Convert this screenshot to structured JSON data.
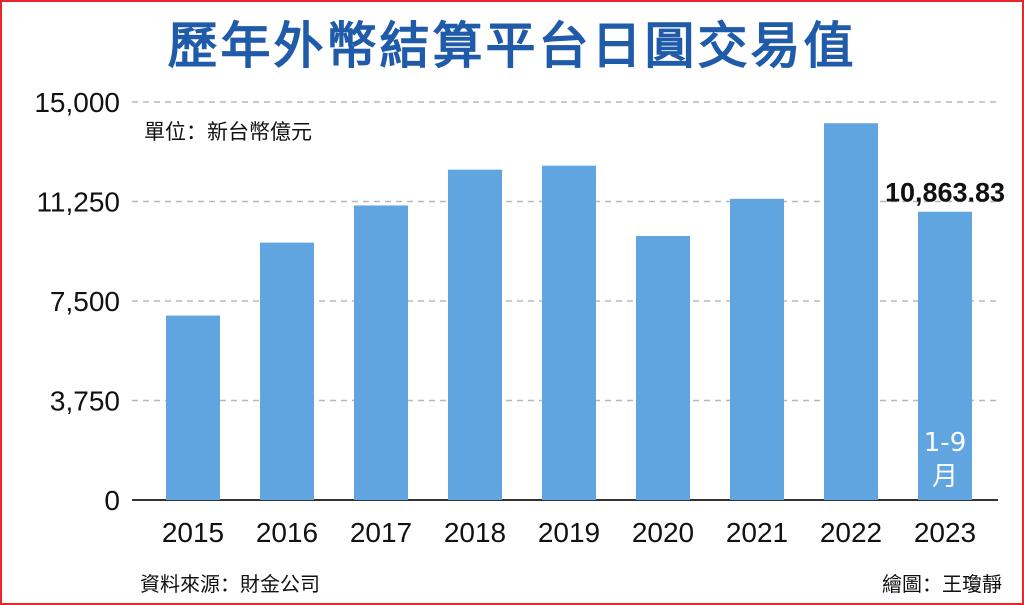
{
  "title": "歷年外幣結算平台日圓交易值",
  "unit_label": "單位：新台幣億元",
  "source": "資料來源：財金公司",
  "credit": "繪圖：王瓊靜",
  "colors": {
    "bar": "#60a5e0",
    "title": "#1f5ba8",
    "border": "#e8262b",
    "grid": "#b8b8b8"
  },
  "chart_data": {
    "type": "bar",
    "title": "歷年外幣結算平台日圓交易值",
    "ylabel": "單位：新台幣億元",
    "categories": [
      "2015",
      "2016",
      "2017",
      "2018",
      "2019",
      "2020",
      "2021",
      "2022",
      "2023"
    ],
    "values": [
      6950,
      9700,
      11100,
      12450,
      12600,
      9950,
      11350,
      14200,
      10863.83
    ],
    "ylim": [
      0,
      15000
    ],
    "yticks": [
      "0",
      "3,750",
      "7,500",
      "11,250",
      "15,000"
    ],
    "ytick_values": [
      0,
      3750,
      7500,
      11250,
      15000
    ],
    "grid": true,
    "annotations": [
      {
        "category": "2023",
        "text": "10,863.83"
      },
      {
        "category": "2023",
        "line1": "1-9",
        "line2": "月"
      }
    ]
  }
}
